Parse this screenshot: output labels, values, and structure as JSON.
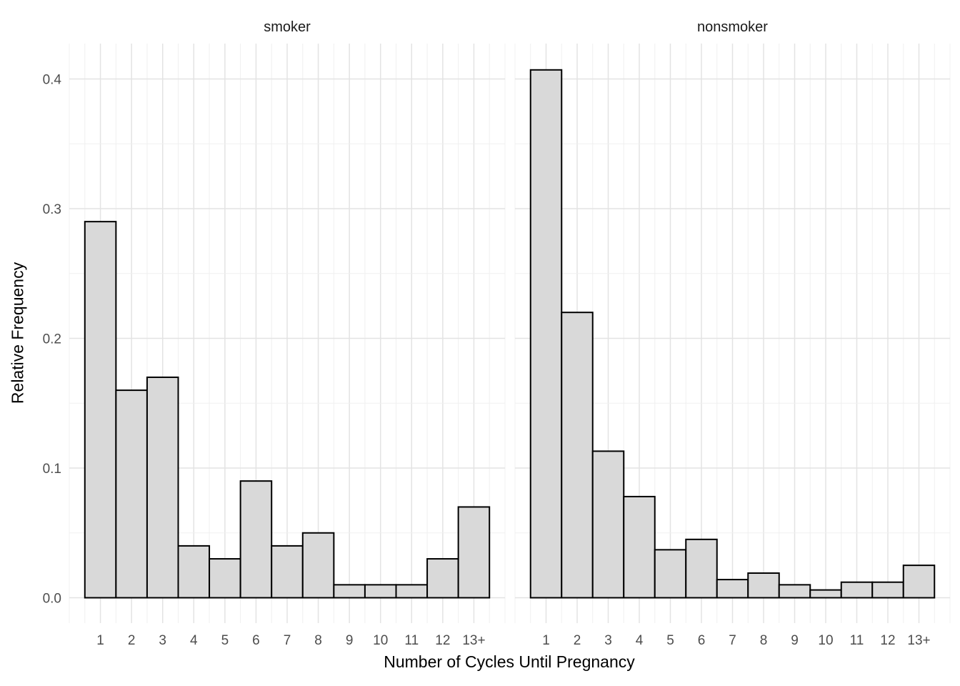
{
  "chart_data": {
    "type": "bar",
    "subtype": "faceted-histogram",
    "title": "",
    "xlabel": "Number of Cycles Until Pregnancy",
    "ylabel": "Relative Frequency",
    "categories": [
      "1",
      "2",
      "3",
      "4",
      "5",
      "6",
      "7",
      "8",
      "9",
      "10",
      "11",
      "12",
      "13+"
    ],
    "facets": [
      {
        "label": "smoker",
        "values": [
          0.29,
          0.16,
          0.17,
          0.04,
          0.03,
          0.09,
          0.04,
          0.05,
          0.01,
          0.01,
          0.01,
          0.03,
          0.07
        ]
      },
      {
        "label": "nonsmoker",
        "values": [
          0.407,
          0.22,
          0.113,
          0.078,
          0.037,
          0.045,
          0.014,
          0.019,
          0.01,
          0.006,
          0.012,
          0.012,
          0.025
        ]
      }
    ],
    "y_ticks": [
      0.0,
      0.1,
      0.2,
      0.3,
      0.4
    ],
    "y_tick_labels": [
      "0.0",
      "0.1",
      "0.2",
      "0.3",
      "0.4"
    ],
    "y_minor_ticks": [
      0.05,
      0.15,
      0.25,
      0.35
    ],
    "ylim": [
      -0.02,
      0.427
    ],
    "grid": true,
    "legend": false,
    "style": {
      "bar_fill": "#d9d9d9",
      "bar_stroke": "#000000",
      "bar_stroke_width": 2,
      "grid_major_color": "#e3e3e3",
      "grid_minor_color": "#f0f0f0",
      "tick_label_color": "#4d4d4d",
      "facet_label_color": "#1a1a1a",
      "axis_title_color": "#000000",
      "background": "#ffffff"
    }
  }
}
